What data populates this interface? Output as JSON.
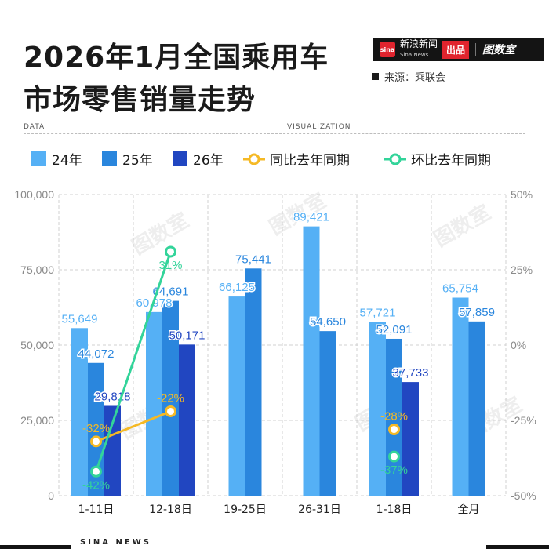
{
  "header": {
    "title_line1": "2026年1月全国乘用车",
    "title_line2": "市场零售销量走势"
  },
  "brand": {
    "logo_text": "sina",
    "name": "新浪新闻",
    "name_sub": "Sina News",
    "badge": "出品",
    "studio": "图数室"
  },
  "source": "来源：乘联会",
  "tags": {
    "left": "DATA",
    "right": "VISUALIZATION"
  },
  "legend": [
    {
      "label": "24年",
      "kind": "bar",
      "color": "#55b0f5"
    },
    {
      "label": "25年",
      "kind": "bar",
      "color": "#2a86dd"
    },
    {
      "label": "26年",
      "kind": "bar",
      "color": "#2146c1"
    },
    {
      "label": "同比去年同期",
      "kind": "line",
      "color": "#f5b925"
    },
    {
      "label": "环比去年同期",
      "kind": "line",
      "color": "#33d49a"
    }
  ],
  "chart_data": {
    "type": "bar",
    "categories": [
      "1-11日",
      "12-18日",
      "19-25日",
      "26-31日",
      "1-18日",
      "全月"
    ],
    "series": [
      {
        "name": "24年",
        "color": "#55b0f5",
        "values": [
          55649,
          60978,
          66125,
          89421,
          57721,
          65754
        ]
      },
      {
        "name": "25年",
        "color": "#2a86dd",
        "values": [
          44072,
          64691,
          75441,
          54650,
          52091,
          57859
        ]
      },
      {
        "name": "26年",
        "color": "#2146c1",
        "values": [
          29818,
          50171,
          null,
          null,
          37733,
          null
        ]
      }
    ],
    "lines": [
      {
        "name": "同比去年同期",
        "color": "#f5b925",
        "values": [
          -32,
          -22,
          null,
          null,
          -28,
          null
        ],
        "segments": [
          [
            0,
            1
          ]
        ]
      },
      {
        "name": "环比去年同期",
        "color": "#33d49a",
        "values": [
          -42,
          31,
          null,
          null,
          -37,
          null
        ],
        "segments": [
          [
            0,
            1
          ]
        ]
      }
    ],
    "point_labels": {
      "同比去年同期": [
        "-32%",
        "-22%",
        "",
        "",
        "-28%",
        ""
      ],
      "环比去年同期": [
        "-42%",
        "31%",
        "",
        "",
        "-37%",
        ""
      ]
    },
    "y_left": {
      "min": 0,
      "max": 100000,
      "ticks": [
        0,
        25000,
        50000,
        75000,
        100000
      ],
      "tick_labels": [
        "0",
        "25,000",
        "50,000",
        "75,000",
        "100,000"
      ]
    },
    "y_right": {
      "min": -50,
      "max": 50,
      "ticks": [
        -50,
        -25,
        0,
        25,
        50
      ],
      "tick_labels": [
        "-50%",
        "-25%",
        "0%",
        "25%",
        "50%"
      ]
    },
    "grid": true
  },
  "footer": "SINA NEWS",
  "watermark": "图数室"
}
